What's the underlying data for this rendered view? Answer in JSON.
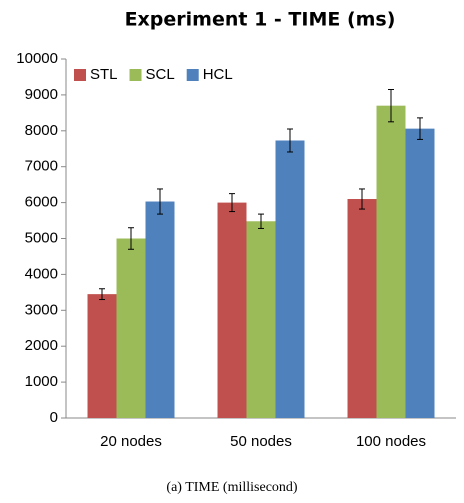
{
  "chart_data": {
    "type": "bar",
    "title": "Experiment 1 - TIME (ms)",
    "caption": "(a)  TIME (millisecond)",
    "categories": [
      "20 nodes",
      "50 nodes",
      "100 nodes"
    ],
    "series": [
      {
        "name": "STL",
        "color": "#c0504d",
        "values": [
          3450,
          6000,
          6100
        ],
        "errors": [
          150,
          250,
          280
        ]
      },
      {
        "name": "SCL",
        "color": "#9bbb59",
        "values": [
          5000,
          5480,
          8700
        ],
        "errors": [
          300,
          200,
          450
        ]
      },
      {
        "name": "HCL",
        "color": "#4f81bd",
        "values": [
          6030,
          7730,
          8060
        ],
        "errors": [
          350,
          320,
          300
        ]
      }
    ],
    "ylim": [
      0,
      10000
    ],
    "yticks": [
      0,
      1000,
      2000,
      3000,
      4000,
      5000,
      6000,
      7000,
      8000,
      9000,
      10000
    ],
    "legend": "top-left",
    "grid": false
  }
}
